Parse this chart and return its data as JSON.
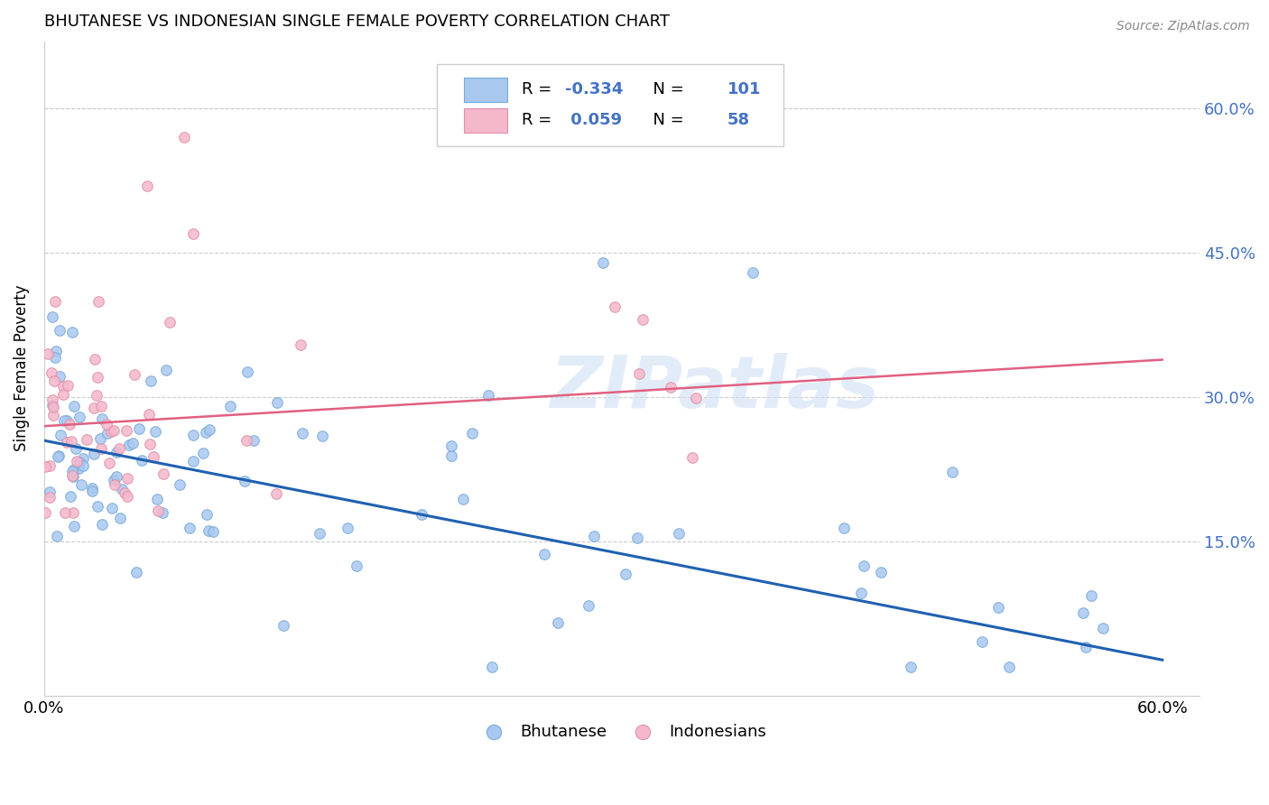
{
  "title": "BHUTANESE VS INDONESIAN SINGLE FEMALE POVERTY CORRELATION CHART",
  "source": "Source: ZipAtlas.com",
  "ylabel": "Single Female Poverty",
  "yticks": [
    "15.0%",
    "30.0%",
    "45.0%",
    "60.0%"
  ],
  "ytick_values": [
    0.15,
    0.3,
    0.45,
    0.6
  ],
  "xtick_values": [
    0.0,
    0.1,
    0.2,
    0.3,
    0.4,
    0.5,
    0.6
  ],
  "xlim": [
    0.0,
    0.62
  ],
  "ylim": [
    -0.01,
    0.67
  ],
  "watermark": "ZIPatlas",
  "blue_color": "#A8C8F0",
  "pink_color": "#F5B8CB",
  "blue_line_color": "#2060B0",
  "pink_line_color": "#E06080",
  "blue_edge_color": "#7AAAD8",
  "pink_edge_color": "#E090A8",
  "blue_R": -0.334,
  "pink_R": 0.059,
  "blue_N": 101,
  "pink_N": 58,
  "blue_intercept": 0.255,
  "blue_slope": -0.38,
  "pink_intercept": 0.27,
  "pink_slope": 0.115
}
